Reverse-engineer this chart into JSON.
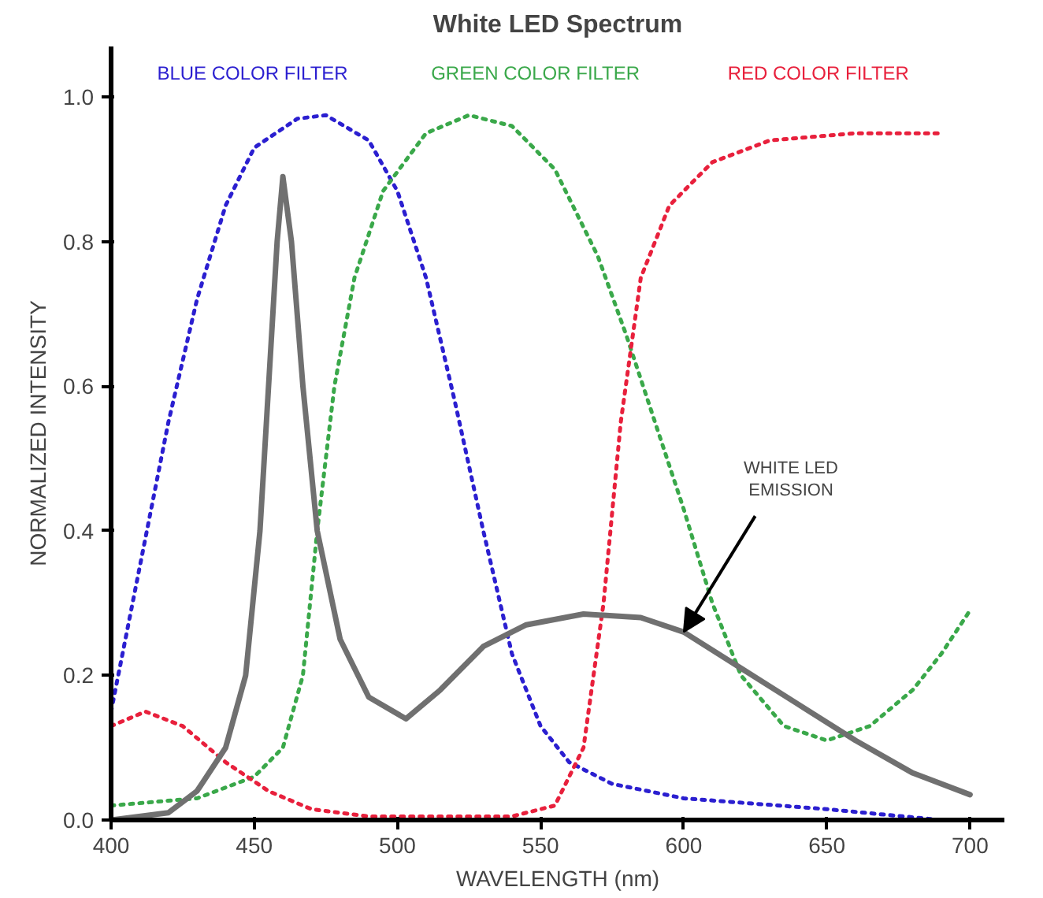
{
  "chart_data": {
    "type": "line",
    "title": "White LED Spectrum",
    "xlabel": "WAVELENGTH (nm)",
    "ylabel": "NORMALIZED INTENSITY",
    "xlim": [
      400,
      712
    ],
    "xticks": [
      400,
      450,
      500,
      550,
      600,
      650,
      700
    ],
    "ylim": [
      0,
      1.07
    ],
    "yticks": [
      {
        "value": 0,
        "label": "0.0"
      },
      0.2,
      0.4,
      0.6,
      0.8,
      {
        "value": 1,
        "label": "1.0"
      }
    ],
    "grid": false,
    "marker": "none",
    "annotations": [
      {
        "text": "WHITE LED\nEMISSION",
        "x": 600,
        "y": 0.26
      }
    ],
    "series": [
      {
        "name": "BLUE COLOR FILTER",
        "color": "#2b1fd0",
        "line_style": "dotted",
        "x": [
          400,
          410,
          420,
          430,
          440,
          450,
          465,
          475,
          490,
          500,
          510,
          520,
          530,
          540,
          550,
          560,
          575,
          600,
          650,
          690
        ],
        "values": [
          0.15,
          0.35,
          0.55,
          0.72,
          0.85,
          0.93,
          0.97,
          0.975,
          0.94,
          0.87,
          0.75,
          0.58,
          0.4,
          0.23,
          0.13,
          0.08,
          0.05,
          0.03,
          0.015,
          0.0
        ]
      },
      {
        "name": "GREEN COLOR FILTER",
        "color": "#3aa84a",
        "line_style": "dotted",
        "x": [
          400,
          430,
          450,
          460,
          467,
          472,
          478,
          485,
          495,
          510,
          525,
          540,
          555,
          570,
          580,
          590,
          600,
          610,
          620,
          635,
          650,
          665,
          680,
          690,
          700
        ],
        "values": [
          0.02,
          0.03,
          0.06,
          0.1,
          0.2,
          0.4,
          0.6,
          0.75,
          0.87,
          0.95,
          0.975,
          0.96,
          0.9,
          0.78,
          0.67,
          0.55,
          0.43,
          0.3,
          0.2,
          0.13,
          0.11,
          0.13,
          0.18,
          0.23,
          0.29
        ]
      },
      {
        "name": "RED COLOR FILTER",
        "color": "#e8203c",
        "line_style": "dotted",
        "x": [
          400,
          412,
          425,
          440,
          455,
          470,
          490,
          540,
          555,
          565,
          572,
          578,
          585,
          595,
          610,
          630,
          660,
          690
        ],
        "values": [
          0.13,
          0.15,
          0.13,
          0.08,
          0.04,
          0.015,
          0.005,
          0.005,
          0.02,
          0.1,
          0.3,
          0.55,
          0.75,
          0.85,
          0.91,
          0.94,
          0.95,
          0.95
        ]
      },
      {
        "color": "#707070",
        "line_style": "solid",
        "x": [
          400,
          420,
          430,
          440,
          447,
          452,
          455,
          458,
          460,
          463,
          467,
          472,
          480,
          490,
          503,
          515,
          530,
          545,
          565,
          585,
          600,
          620,
          640,
          660,
          680,
          700
        ],
        "values": [
          0.0,
          0.01,
          0.04,
          0.1,
          0.2,
          0.4,
          0.6,
          0.8,
          0.89,
          0.8,
          0.6,
          0.4,
          0.25,
          0.17,
          0.14,
          0.18,
          0.24,
          0.27,
          0.285,
          0.28,
          0.26,
          0.21,
          0.16,
          0.11,
          0.065,
          0.035
        ]
      }
    ]
  }
}
